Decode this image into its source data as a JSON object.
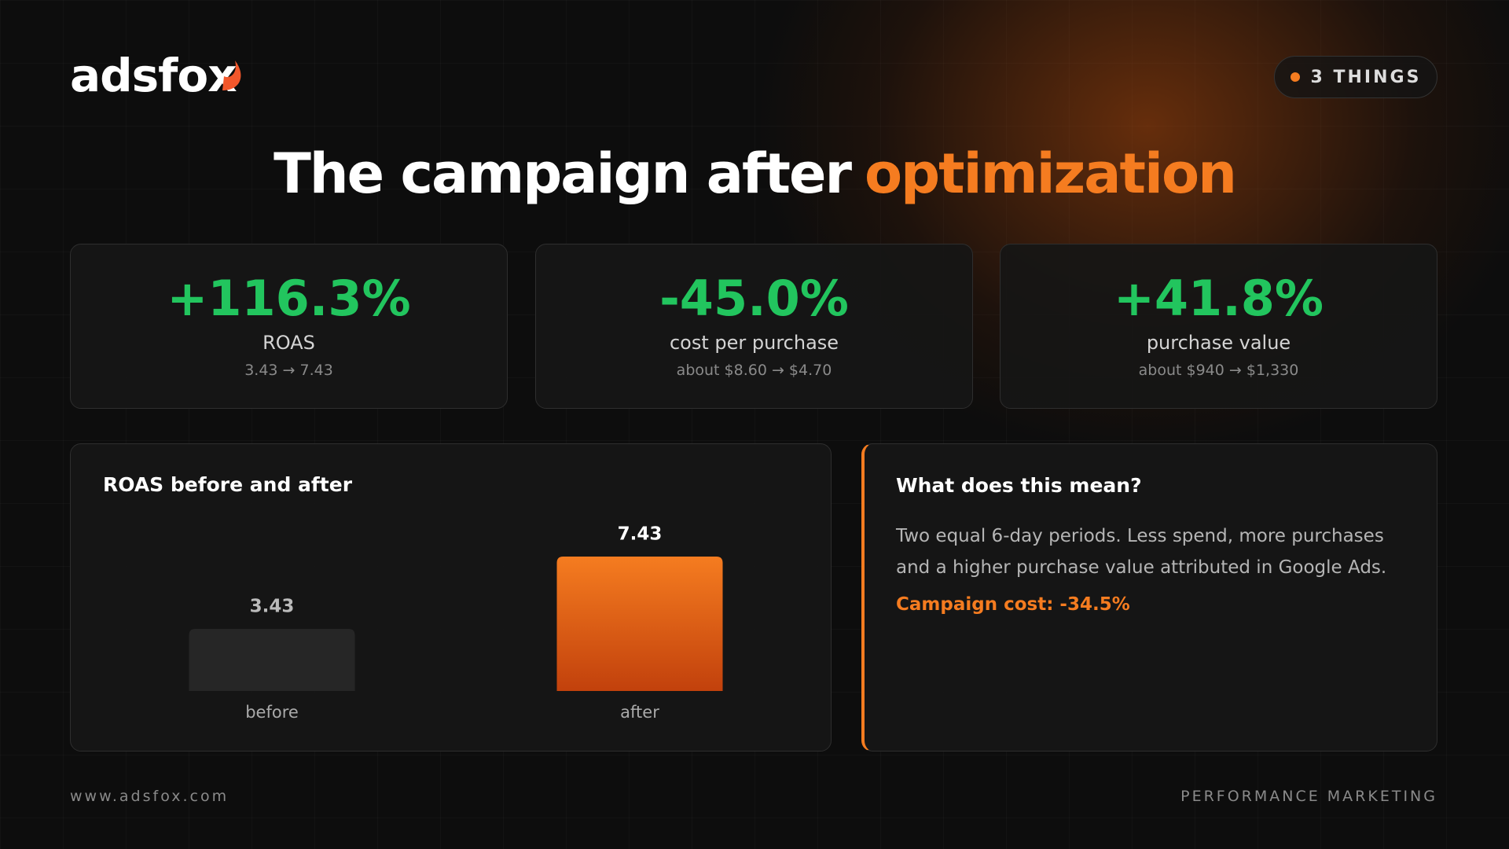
{
  "logo": {
    "text": "adsfox"
  },
  "badge": {
    "text": "3 THINGS"
  },
  "title": {
    "text": "The campaign after",
    "highlight": "optimization"
  },
  "kpis": [
    {
      "value": "+116.3%",
      "label": "ROAS",
      "detail": "3.43 → 7.43"
    },
    {
      "value": "-45.0%",
      "label": "cost per purchase",
      "detail": "about $8.60 → $4.70"
    },
    {
      "value": "+41.8%",
      "label": "purchase value",
      "detail": "about $940 → $1,330"
    }
  ],
  "chart_data": {
    "type": "bar",
    "title": "ROAS before and after",
    "categories": [
      "before",
      "after"
    ],
    "values": [
      3.43,
      7.43
    ],
    "colors": [
      "#262626",
      "#f07419"
    ]
  },
  "explainer": {
    "heading": "What does this mean?",
    "body": "Two equal 6-day periods. Less spend, more purchases and a higher purchase value attributed in Google Ads.",
    "highlight": "Campaign cost: -34.5%"
  },
  "footer": {
    "left": "www.adsfox.com",
    "right": "PERFORMANCE MARKETING"
  }
}
